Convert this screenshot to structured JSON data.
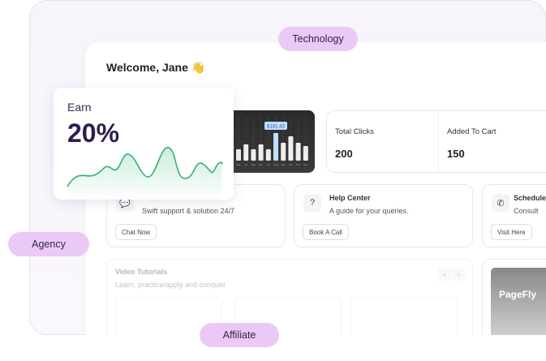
{
  "welcome": "Welcome, Jane 👋",
  "earn": {
    "label": "Earn",
    "value": "20%"
  },
  "mini_chart": {
    "tooltip": "$181.43",
    "months": [
      "Mar",
      "Apr",
      "May",
      "Jun",
      "Jul",
      "Aug",
      "Sep",
      "Oct",
      "Nov",
      "Dec"
    ],
    "values": [
      14,
      20,
      14,
      20,
      14,
      34,
      22,
      30,
      22,
      18
    ],
    "highlight_index": 5,
    "highlight_color": "#bfe0ff"
  },
  "stats": [
    {
      "label": "Total Clicks",
      "value": "200"
    },
    {
      "label": "Added To Cart",
      "value": "150"
    }
  ],
  "support": [
    {
      "title": "",
      "desc": "Swift support & solution 24/7",
      "button": "Chat Now",
      "icon": "chat-icon"
    },
    {
      "title": "Help Center",
      "desc": "A guide for your queries.",
      "button": "Book A Call",
      "icon": "question-icon"
    },
    {
      "title": "Schedule",
      "desc": "Consult",
      "button": "Visit Here",
      "icon": "phone-icon"
    }
  ],
  "video": {
    "title": "Video Tutorials",
    "desc": "Learn, practice/apply and conquer",
    "prev": "‹",
    "next": "›"
  },
  "promo": {
    "text": "PageFly"
  },
  "pills": {
    "technology": "Technology",
    "agency": "Agency",
    "affiliate": "Affiliate"
  },
  "colors": {
    "pill": "#ebc9f7",
    "earn_line": "#2db56a"
  }
}
